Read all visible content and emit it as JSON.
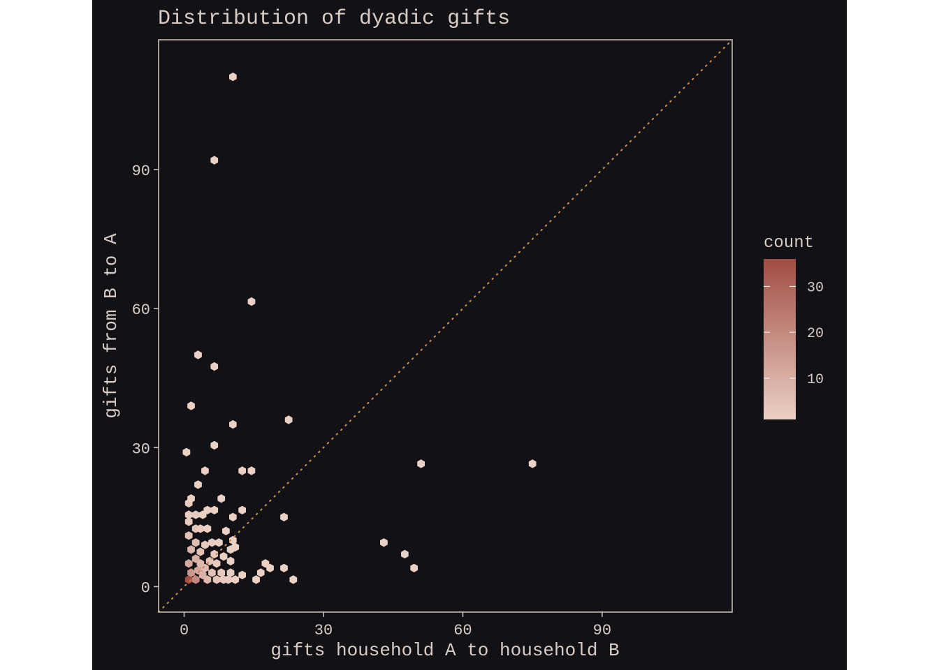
{
  "colors": {
    "panel_background": "#121116",
    "text": "#d8ccc4",
    "frame": "#c9bdb4",
    "reference_line": "#c8884a",
    "hex_low": "#ebd0c4",
    "hex_high": "#a14d44"
  },
  "chart_data": {
    "type": "hexbin",
    "title": "Distribution of dyadic gifts",
    "xlabel": "gifts household A to household B",
    "ylabel": "gifts from B to A",
    "xlim": [
      -5.5,
      118
    ],
    "ylim": [
      -5.5,
      118
    ],
    "x_ticks": [
      0,
      30,
      60,
      90
    ],
    "y_ticks": [
      0,
      30,
      60,
      90
    ],
    "reference_line": {
      "type": "identity",
      "style": "dotted"
    },
    "legend": {
      "title": "count",
      "position": "right",
      "ticks": [
        10,
        20,
        30
      ],
      "range": [
        1,
        36
      ]
    },
    "points": [
      [
        1,
        1.5,
        36
      ],
      [
        2.5,
        1.5,
        20
      ],
      [
        1.5,
        3,
        16
      ],
      [
        3,
        3.5,
        12
      ],
      [
        1,
        5,
        12
      ],
      [
        2.5,
        6,
        10
      ],
      [
        4,
        2.5,
        9
      ],
      [
        1.5,
        8,
        8
      ],
      [
        3.5,
        5,
        7
      ],
      [
        5,
        1.5,
        7
      ],
      [
        4.5,
        4,
        6
      ],
      [
        2.5,
        9.5,
        6
      ],
      [
        1,
        11,
        5
      ],
      [
        6,
        3,
        5
      ],
      [
        3.5,
        7.5,
        5
      ],
      [
        5.5,
        5.5,
        4
      ],
      [
        7,
        1.5,
        4
      ],
      [
        2.5,
        12.5,
        4
      ],
      [
        1,
        14,
        3
      ],
      [
        4.5,
        9,
        3
      ],
      [
        6.5,
        7,
        3
      ],
      [
        8,
        3,
        3
      ],
      [
        8.5,
        1.5,
        3
      ],
      [
        1,
        15.5,
        2
      ],
      [
        2.5,
        15.5,
        2
      ],
      [
        3.5,
        12.5,
        2
      ],
      [
        6,
        9.5,
        2
      ],
      [
        7,
        5,
        2
      ],
      [
        9.5,
        1.5,
        2
      ],
      [
        10,
        3,
        2
      ],
      [
        1,
        18,
        2
      ],
      [
        5,
        12.5,
        1
      ],
      [
        4,
        15.5,
        1
      ],
      [
        5,
        16.5,
        1
      ],
      [
        6.5,
        16.5,
        1
      ],
      [
        7.5,
        9.5,
        1
      ],
      [
        8.5,
        6.5,
        1
      ],
      [
        10,
        8,
        1
      ],
      [
        10.5,
        10,
        1
      ],
      [
        11,
        8.5,
        1
      ],
      [
        11,
        1.5,
        1
      ],
      [
        12.5,
        2.5,
        1
      ],
      [
        9,
        12,
        1
      ],
      [
        10.5,
        15,
        1
      ],
      [
        12.5,
        16.5,
        1
      ],
      [
        8,
        19,
        1
      ],
      [
        1.5,
        19,
        1
      ],
      [
        3,
        22,
        1
      ],
      [
        4.5,
        25,
        1
      ],
      [
        12.5,
        25,
        1
      ],
      [
        14.5,
        25,
        1
      ],
      [
        10,
        5.5,
        1
      ],
      [
        15.5,
        1.5,
        1
      ],
      [
        16.5,
        3,
        1
      ],
      [
        17.5,
        5,
        1
      ],
      [
        18.5,
        4,
        1
      ],
      [
        21.5,
        4,
        1
      ],
      [
        23.5,
        1.5,
        1
      ],
      [
        21.5,
        15,
        1
      ],
      [
        0.5,
        29,
        1
      ],
      [
        6.5,
        30.5,
        1
      ],
      [
        10.5,
        35,
        1
      ],
      [
        22.5,
        36,
        1
      ],
      [
        1.5,
        39,
        1
      ],
      [
        6.5,
        47.5,
        1
      ],
      [
        3,
        50,
        1
      ],
      [
        14.5,
        61.5,
        1
      ],
      [
        6.5,
        92,
        1
      ],
      [
        10.5,
        110,
        1
      ],
      [
        43,
        9.5,
        1
      ],
      [
        47.5,
        7,
        1
      ],
      [
        49.5,
        4,
        1
      ],
      [
        51,
        26.5,
        1
      ],
      [
        75,
        26.5,
        1
      ]
    ]
  }
}
